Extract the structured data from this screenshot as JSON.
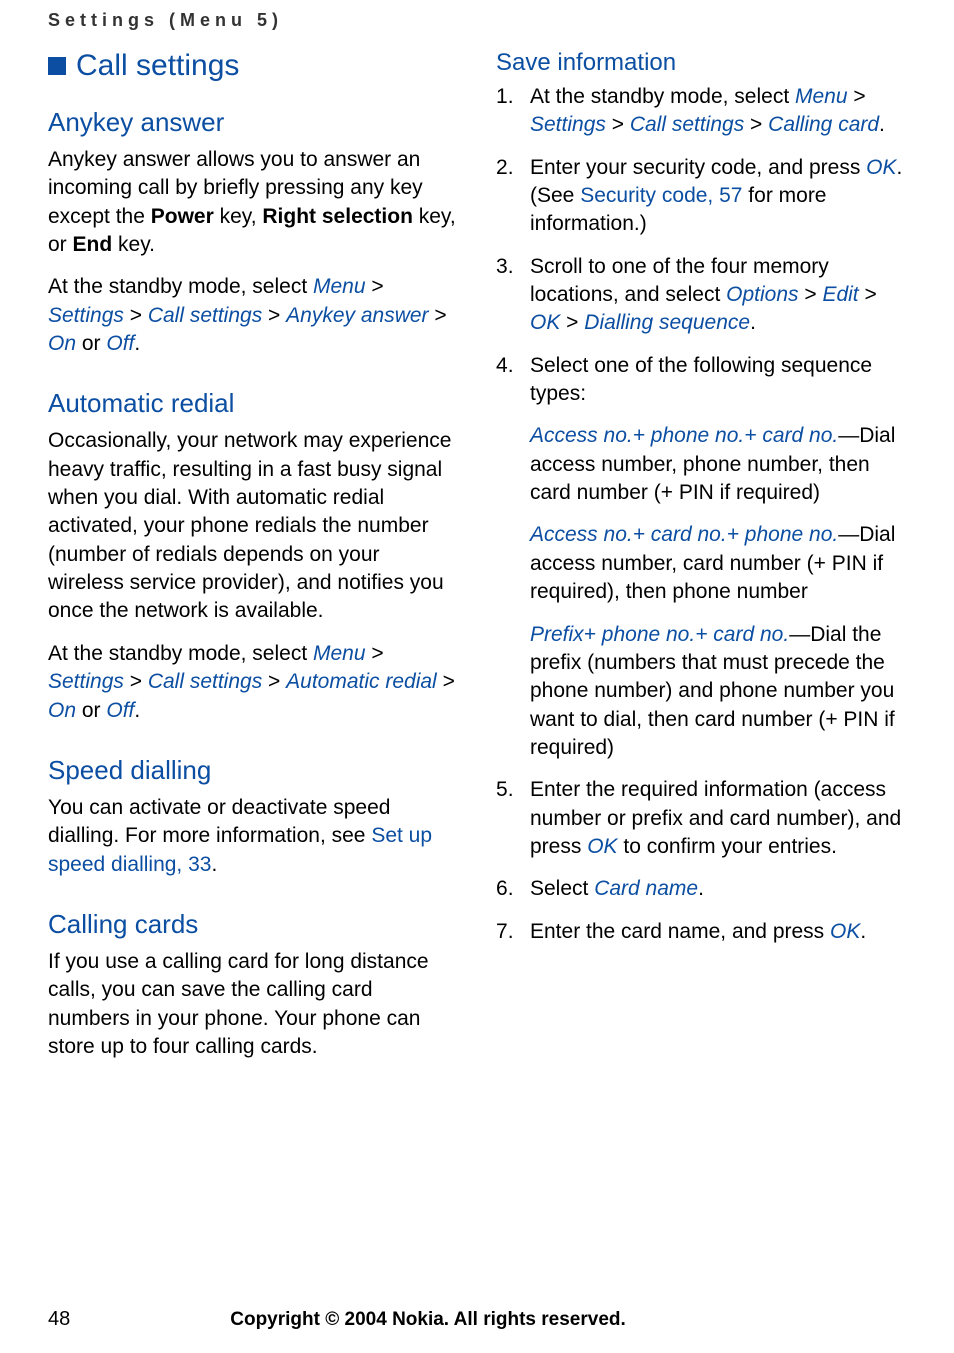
{
  "header": {
    "breadcrumb": "Settings (Menu 5)"
  },
  "left": {
    "sectionBullet": true,
    "sectionTitle": "Call settings",
    "anykey": {
      "heading": "Anykey answer",
      "p1_a": "Anykey answer allows you to answer an incoming call by briefly pressing any key except the ",
      "p1_power": "Power",
      "p1_b": " key, ",
      "p1_right": "Right selection",
      "p1_c": " key, or ",
      "p1_end": "End",
      "p1_d": " key.",
      "p2_a": "At the standby mode, select ",
      "p2_menu": "Menu",
      "p2_gt1": " > ",
      "p2_settings": "Settings",
      "p2_gt2": " > ",
      "p2_callset": "Call settings",
      "p2_gt3": " > ",
      "p2_anykey": "Anykey answer",
      "p2_gt4": " > ",
      "p2_on": "On",
      "p2_or": " or ",
      "p2_off": "Off",
      "p2_period": "."
    },
    "auto": {
      "heading": "Automatic redial",
      "p1": "Occasionally, your network may experience heavy traffic, resulting in a fast busy signal when you dial. With automatic redial activated, your phone redials the number (number of redials depends on your wireless service provider), and notifies you once the network is available.",
      "p2_a": "At the standby mode, select ",
      "p2_menu": "Menu",
      "p2_gt1": " > ",
      "p2_settings": "Settings",
      "p2_gt2": " > ",
      "p2_callset": "Call settings",
      "p2_gt3": " > ",
      "p2_autoredial": "Automatic redial",
      "p2_gt4": " > ",
      "p2_on": "On",
      "p2_or": " or ",
      "p2_off": "Off",
      "p2_period": "."
    },
    "speed": {
      "heading": "Speed dialling",
      "p1_a": "You can activate or deactivate speed dialling. For more information, see ",
      "p1_link": "Set up speed dialling, 33",
      "p1_b": "."
    },
    "cards": {
      "heading": "Calling cards",
      "p1": "If you use a calling card for long distance calls, you can save the calling card numbers in your phone. Your phone can store up to four calling cards."
    }
  },
  "right": {
    "saveinfo": {
      "heading": "Save information",
      "li1_a": "At the standby mode, select ",
      "li1_menu": "Menu",
      "li1_gt1": " > ",
      "li1_settings": "Settings",
      "li1_gt2": " > ",
      "li1_callset": "Call settings",
      "li1_gt3": " > ",
      "li1_callingcard": "Calling card",
      "li1_period": ".",
      "li2_a": "Enter your security code, and press ",
      "li2_ok": "OK",
      "li2_b": ". (See ",
      "li2_link": "Security code, 57",
      "li2_c": " for more information.)",
      "li3_a": "Scroll to one of the four memory locations, and select ",
      "li3_options": "Options",
      "li3_gt1": " > ",
      "li3_edit": "Edit",
      "li3_gt2": " > ",
      "li3_ok": "OK",
      "li3_gt3": " > ",
      "li3_dialseq": "Dialling sequence",
      "li3_period": ".",
      "li4": "Select one of the following sequence types:",
      "seq1_title": "Access no.+ phone no.+ card no.",
      "seq1_body": "—Dial access number, phone number, then card number (+ PIN if required)",
      "seq2_title": "Access no.+ card no.+ phone no.",
      "seq2_body": "—Dial access number, card number (+ PIN if required), then phone number",
      "seq3_title": "Prefix+ phone no.+ card no.",
      "seq3_body": "—Dial the prefix (numbers that must precede the phone number) and phone number you want to dial, then card number (+ PIN if required)",
      "li5_a": "Enter the required information (access number or prefix and card number), and press ",
      "li5_ok": "OK",
      "li5_b": " to confirm your entries.",
      "li6_a": "Select ",
      "li6_cardname": "Card name",
      "li6_b": ".",
      "li7_a": "Enter the card name, and press ",
      "li7_ok": "OK",
      "li7_b": "."
    }
  },
  "footer": {
    "page": "48",
    "copyright": "Copyright © 2004 Nokia. All rights reserved."
  },
  "colors": {
    "brand_blue": "#0b4ea2",
    "text": "#000000",
    "background": "#ffffff"
  }
}
